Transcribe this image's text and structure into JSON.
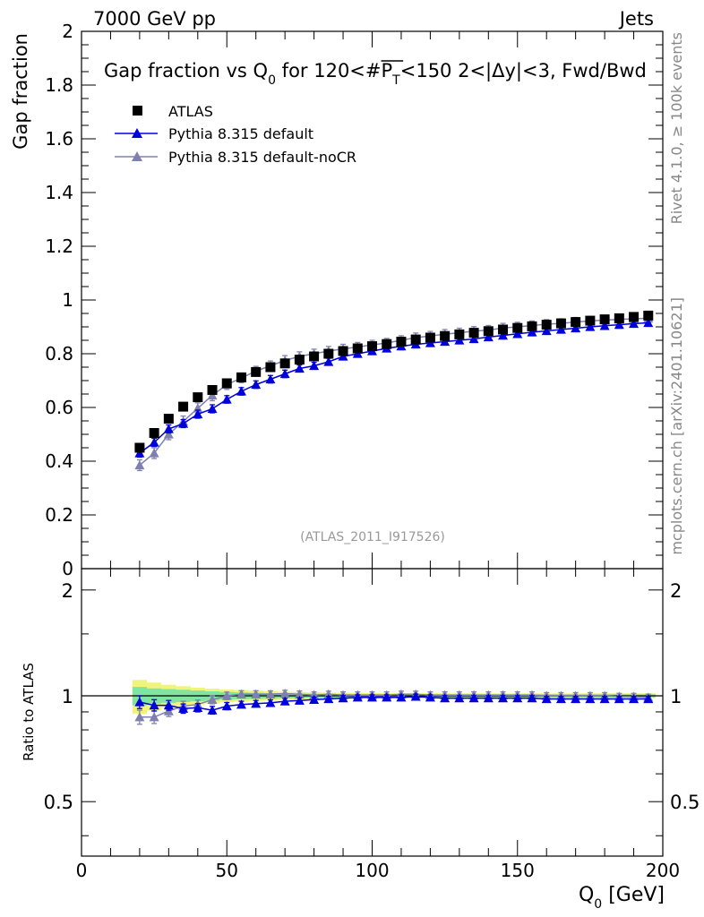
{
  "header": {
    "left": "7000 GeV pp",
    "right": "Jets"
  },
  "side_labels": {
    "rivet": "Rivet 4.1.0, ≥ 100k events",
    "mcplots": "mcplots.cern.ch [arXiv:2401.10621]"
  },
  "colors": {
    "atlas": "#000000",
    "default": "#0000dd",
    "nocr": "#8080b0",
    "band_inner": "#7fe5a0",
    "band_outer": "#f0f57a",
    "watermark": "#999999",
    "side_text": "#888888"
  },
  "chart_data": [
    {
      "type": "scatter",
      "panel": "main",
      "title_parts": {
        "prefix": "Gap fraction vs Q",
        "sub": "0",
        "mid": " for 120<#",
        "pbar": "P",
        "psub": "T",
        "suffix": "<150  2<|Δy|<3, Fwd/Bwd"
      },
      "ylabel": "Gap fraction",
      "xlim": [
        0,
        200
      ],
      "ylim": [
        0,
        2
      ],
      "yticks": [
        0,
        0.2,
        0.4,
        0.6,
        0.8,
        1,
        1.2,
        1.4,
        1.6,
        1.8,
        2
      ],
      "ytick_labels": [
        "0",
        "0.2",
        "0.4",
        "0.6",
        "0.8",
        "1",
        "1.2",
        "1.4",
        "1.6",
        "1.8",
        "2"
      ],
      "watermark": "(ATLAS_2011_I917526)",
      "x": [
        20,
        25,
        30,
        35,
        40,
        45,
        50,
        55,
        60,
        65,
        70,
        75,
        80,
        85,
        90,
        95,
        100,
        105,
        110,
        115,
        120,
        125,
        130,
        135,
        140,
        145,
        150,
        155,
        160,
        165,
        170,
        175,
        180,
        185,
        190,
        195
      ],
      "series": [
        {
          "name": "ATLAS",
          "marker": "square",
          "values": [
            0.45,
            0.505,
            0.558,
            0.603,
            0.638,
            0.665,
            0.69,
            0.712,
            0.732,
            0.75,
            0.764,
            0.778,
            0.79,
            0.8,
            0.81,
            0.82,
            0.828,
            0.836,
            0.845,
            0.853,
            0.86,
            0.866,
            0.872,
            0.878,
            0.884,
            0.89,
            0.896,
            0.902,
            0.908,
            0.913,
            0.918,
            0.923,
            0.928,
            0.932,
            0.937,
            0.942
          ]
        },
        {
          "name": "Pythia 8.315 default",
          "marker": "triangle",
          "values": [
            0.43,
            0.47,
            0.52,
            0.54,
            0.575,
            0.595,
            0.63,
            0.66,
            0.685,
            0.705,
            0.725,
            0.745,
            0.755,
            0.77,
            0.79,
            0.8,
            0.81,
            0.82,
            0.828,
            0.835,
            0.84,
            0.845,
            0.85,
            0.855,
            0.862,
            0.868,
            0.874,
            0.88,
            0.885,
            0.89,
            0.895,
            0.9,
            0.904,
            0.908,
            0.912,
            0.915
          ],
          "errors": [
            0.015,
            0.015,
            0.015,
            0.015,
            0.015,
            0.015,
            0.014,
            0.014,
            0.014,
            0.014,
            0.014,
            0.013,
            0.013,
            0.013,
            0.013,
            0.013,
            0.013,
            0.013,
            0.013,
            0.013,
            0.013,
            0.013,
            0.013,
            0.013,
            0.013,
            0.013,
            0.013,
            0.013,
            0.013,
            0.013,
            0.013,
            0.013,
            0.013,
            0.013,
            0.013,
            0.013
          ]
        },
        {
          "name": "Pythia 8.315 default-noCR",
          "marker": "triangle",
          "values": [
            0.385,
            0.43,
            0.5,
            0.548,
            0.597,
            0.645,
            0.685,
            0.71,
            0.735,
            0.755,
            0.775,
            0.79,
            0.8,
            0.81,
            0.818,
            0.825,
            0.833,
            0.84,
            0.85,
            0.86,
            0.866,
            0.873,
            0.878,
            0.884,
            0.888,
            0.896,
            0.9,
            0.905,
            0.91,
            0.913,
            0.918,
            0.922,
            0.925,
            0.928,
            0.93,
            0.932
          ],
          "errors": [
            0.02,
            0.02,
            0.02,
            0.02,
            0.02,
            0.02,
            0.018,
            0.018,
            0.018,
            0.018,
            0.018,
            0.017,
            0.017,
            0.017,
            0.017,
            0.017,
            0.017,
            0.017,
            0.017,
            0.017,
            0.017,
            0.017,
            0.017,
            0.017,
            0.017,
            0.017,
            0.017,
            0.017,
            0.017,
            0.017,
            0.017,
            0.017,
            0.017,
            0.017,
            0.017,
            0.017
          ]
        }
      ]
    },
    {
      "type": "scatter",
      "panel": "ratio",
      "ylabel": "Ratio to ATLAS",
      "xlabel_main": "Q",
      "xlabel_sub": "0",
      "xlabel_unit": " [GeV]",
      "xlim": [
        0,
        200
      ],
      "ylim": [
        0.35,
        2.3
      ],
      "xticks": [
        0,
        50,
        100,
        150,
        200
      ],
      "xtick_labels": [
        "0",
        "50",
        "100",
        "150",
        "200"
      ],
      "yticks": [
        0.5,
        1,
        2
      ],
      "ytick_labels": [
        "0.5",
        "1",
        "2"
      ],
      "band_inner_halfwidth": [
        0.06,
        0.05,
        0.045,
        0.04,
        0.035,
        0.03,
        0.025,
        0.022,
        0.02,
        0.018,
        0.016,
        0.015,
        0.014,
        0.013,
        0.012,
        0.011,
        0.011,
        0.01,
        0.01,
        0.01,
        0.01,
        0.01,
        0.01,
        0.01,
        0.01,
        0.01,
        0.01,
        0.01,
        0.01,
        0.01,
        0.01,
        0.01,
        0.01,
        0.01,
        0.01,
        0.01
      ],
      "band_outer_halfwidth": [
        0.11,
        0.09,
        0.075,
        0.065,
        0.055,
        0.048,
        0.042,
        0.038,
        0.034,
        0.03,
        0.027,
        0.025,
        0.023,
        0.021,
        0.02,
        0.019,
        0.018,
        0.018,
        0.017,
        0.017,
        0.017,
        0.016,
        0.016,
        0.016,
        0.016,
        0.016,
        0.016,
        0.016,
        0.016,
        0.016,
        0.016,
        0.016,
        0.016,
        0.016,
        0.016,
        0.016
      ],
      "series": [
        {
          "name": "Pythia 8.315 default",
          "values": [
            0.96,
            0.94,
            0.94,
            0.92,
            0.925,
            0.91,
            0.935,
            0.945,
            0.95,
            0.955,
            0.965,
            0.97,
            0.975,
            0.98,
            0.985,
            0.99,
            0.99,
            0.99,
            0.99,
            0.995,
            0.99,
            0.985,
            0.985,
            0.985,
            0.985,
            0.985,
            0.985,
            0.985,
            0.98,
            0.98,
            0.98,
            0.98,
            0.98,
            0.98,
            0.98,
            0.98
          ],
          "errors": [
            0.04,
            0.035,
            0.03,
            0.028,
            0.025,
            0.023,
            0.022,
            0.02,
            0.02,
            0.019,
            0.018,
            0.017,
            0.017,
            0.016,
            0.016,
            0.016,
            0.016,
            0.016,
            0.016,
            0.016,
            0.016,
            0.016,
            0.016,
            0.016,
            0.016,
            0.016,
            0.016,
            0.016,
            0.016,
            0.016,
            0.016,
            0.016,
            0.016,
            0.016,
            0.016,
            0.016
          ]
        },
        {
          "name": "Pythia 8.315 default-noCR",
          "values": [
            0.87,
            0.87,
            0.905,
            0.935,
            0.945,
            0.975,
            1.0,
            1.01,
            1.01,
            1.01,
            1.015,
            1.01,
            1.005,
            1.01,
            1.005,
            1.005,
            1.005,
            1.005,
            1.01,
            1.01,
            1.005,
            1.005,
            1.005,
            1.005,
            1.005,
            1.005,
            1.005,
            1.005,
            1.0,
            1.0,
            1.0,
            1.0,
            1.0,
            0.995,
            0.995,
            0.99
          ],
          "errors": [
            0.04,
            0.036,
            0.032,
            0.03,
            0.028,
            0.026,
            0.025,
            0.024,
            0.024,
            0.023,
            0.022,
            0.022,
            0.021,
            0.021,
            0.021,
            0.021,
            0.021,
            0.021,
            0.021,
            0.021,
            0.021,
            0.021,
            0.021,
            0.021,
            0.021,
            0.021,
            0.021,
            0.021,
            0.021,
            0.021,
            0.021,
            0.021,
            0.021,
            0.021,
            0.021,
            0.021
          ]
        }
      ]
    }
  ]
}
